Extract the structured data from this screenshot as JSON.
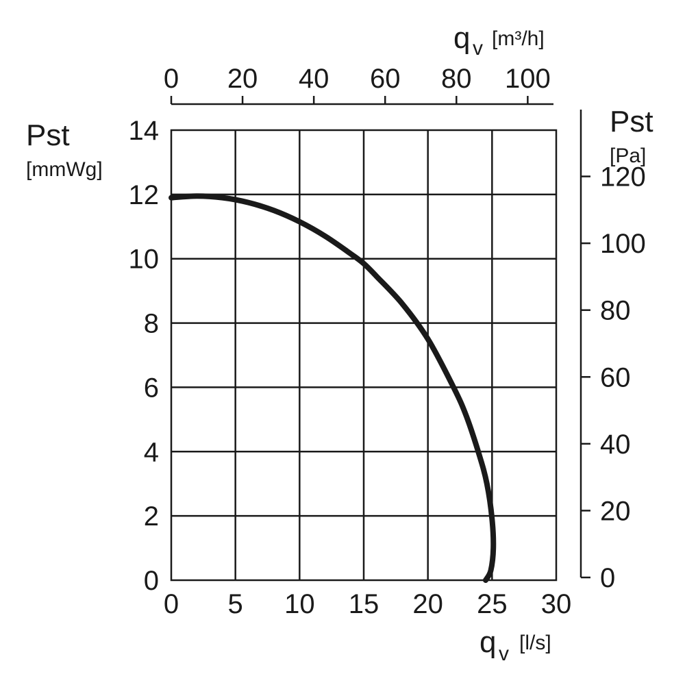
{
  "chart_data": {
    "type": "line",
    "x_axis_bottom": {
      "symbol": "q",
      "subscript": "v",
      "unit": "[l/s]",
      "range": [
        0,
        30
      ],
      "ticks": [
        "0",
        "5",
        "10",
        "15",
        "20",
        "25",
        "30"
      ]
    },
    "x_axis_top": {
      "symbol": "q",
      "subscript": "v",
      "unit": "[m³/h]",
      "range": [
        0,
        108
      ],
      "ticks": [
        "0",
        "20",
        "40",
        "60",
        "80",
        "100"
      ]
    },
    "y_axis_left": {
      "name": "Pst",
      "unit": "[mmWg]",
      "range": [
        0,
        14
      ],
      "ticks": [
        "0",
        "2",
        "4",
        "6",
        "8",
        "10",
        "12",
        "14"
      ]
    },
    "y_axis_right": {
      "name": "Pst",
      "unit": "[Pa]",
      "range": [
        0,
        140
      ],
      "ticks": [
        "0",
        "20",
        "40",
        "60",
        "80",
        "100",
        "120"
      ]
    },
    "grid": true,
    "series": [
      {
        "x": [
          0,
          2,
          4,
          6,
          8,
          10,
          12,
          14,
          15,
          16,
          18,
          20,
          22,
          23,
          24,
          24.6,
          25,
          25.1,
          24.9,
          24.5
        ],
        "y": [
          11.9,
          11.95,
          11.9,
          11.75,
          11.5,
          11.15,
          10.7,
          10.15,
          9.85,
          9.45,
          8.6,
          7.5,
          6.0,
          5.1,
          3.9,
          3.0,
          1.9,
          1.0,
          0.3,
          0.0
        ]
      }
    ]
  }
}
